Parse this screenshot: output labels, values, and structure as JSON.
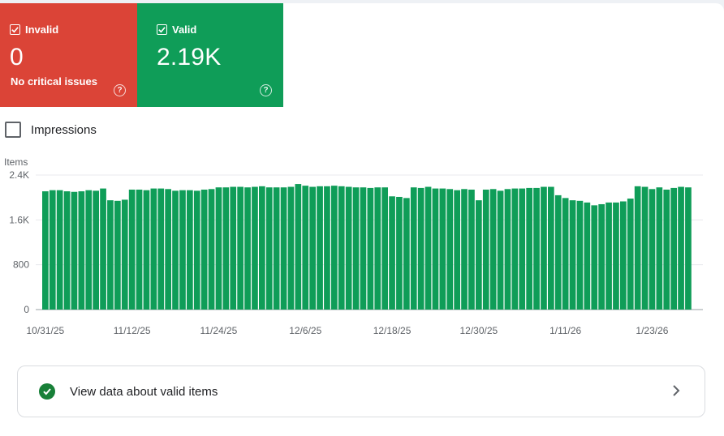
{
  "tiles": {
    "invalid": {
      "label": "Invalid",
      "value": "0",
      "subtitle": "No critical issues",
      "help_icon": "help-circle-icon",
      "color": "#db4437"
    },
    "valid": {
      "label": "Valid",
      "value": "2.19K",
      "help_icon": "help-circle-icon",
      "color": "#0f9d58"
    }
  },
  "impressions_toggle": {
    "label": "Impressions",
    "checked": false
  },
  "chart_data": {
    "type": "bar",
    "ylabel": "Items",
    "ylim": [
      0,
      2400
    ],
    "yticks": [
      "0",
      "800",
      "1.6K",
      "2.4K"
    ],
    "xtick_labels": [
      "10/31/25",
      "11/12/25",
      "11/24/25",
      "12/6/25",
      "12/18/25",
      "12/30/25",
      "1/11/26",
      "1/23/26"
    ],
    "bar_color": "#0f9d58",
    "grid": true,
    "start_date": "10/31/25",
    "values": [
      2110,
      2130,
      2130,
      2110,
      2100,
      2110,
      2130,
      2120,
      2160,
      1950,
      1940,
      1960,
      2140,
      2140,
      2130,
      2160,
      2160,
      2150,
      2120,
      2130,
      2130,
      2120,
      2140,
      2150,
      2180,
      2180,
      2190,
      2190,
      2180,
      2190,
      2200,
      2180,
      2180,
      2180,
      2190,
      2240,
      2210,
      2190,
      2200,
      2200,
      2210,
      2200,
      2190,
      2180,
      2180,
      2170,
      2180,
      2180,
      2020,
      2010,
      1990,
      2180,
      2170,
      2190,
      2160,
      2160,
      2150,
      2130,
      2150,
      2140,
      1950,
      2140,
      2150,
      2120,
      2150,
      2160,
      2160,
      2170,
      2170,
      2190,
      2190,
      2040,
      1990,
      1950,
      1940,
      1910,
      1860,
      1880,
      1910,
      1910,
      1930,
      1980,
      2200,
      2190,
      2150,
      2180,
      2140,
      2170,
      2190,
      2180
    ]
  },
  "valid_items_link": {
    "label": "View data about valid items",
    "icon": "check-circle-icon",
    "chevron": "chevron-right-icon",
    "icon_color": "#188038"
  }
}
